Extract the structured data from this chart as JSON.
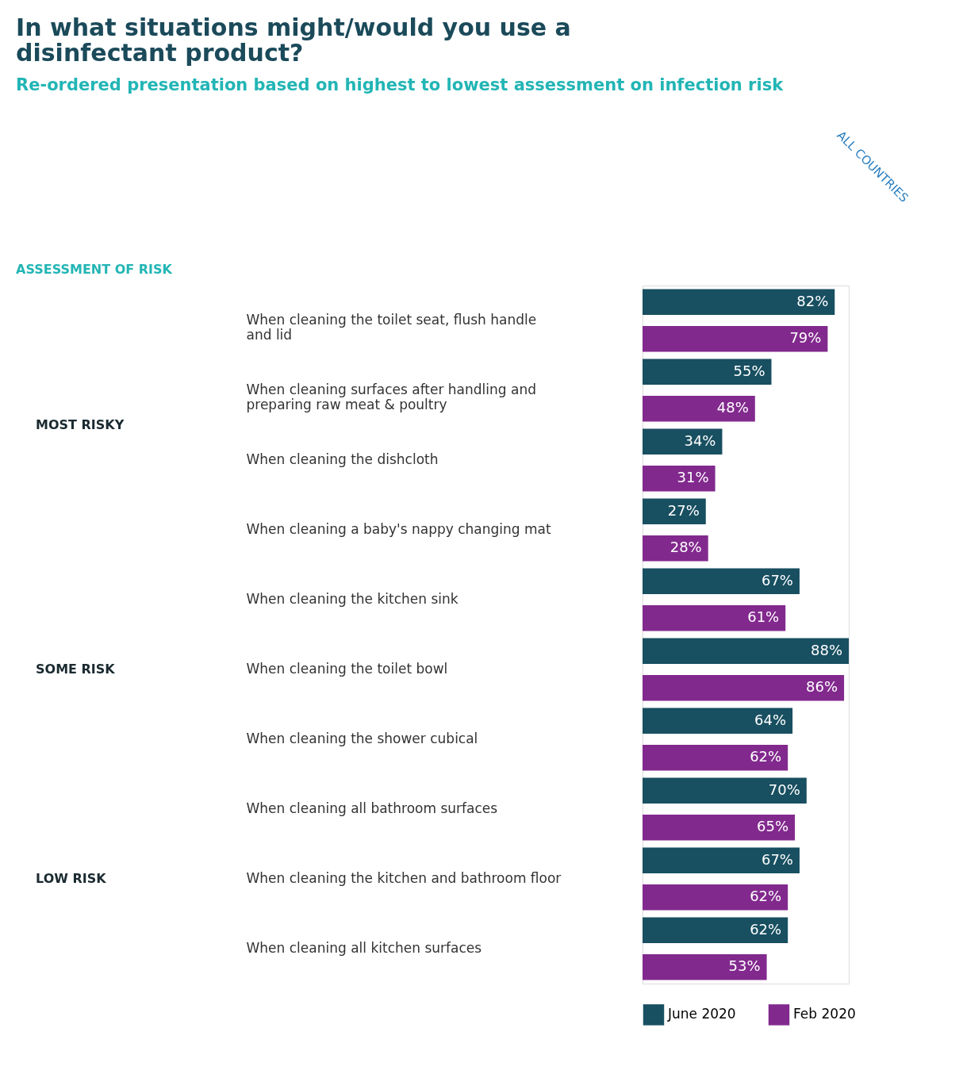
{
  "chart_data": {
    "type": "bar",
    "orientation": "horizontal",
    "title": "In what situations might/would you use a disinfectant product?",
    "subtitle": "Re-ordered presentation based on highest to lowest assessment on infection risk",
    "categories": [
      "When cleaning the toilet seat, flush handle and lid",
      "When cleaning surfaces after handling and preparing raw meat & poultry",
      "When cleaning the dishcloth",
      "When cleaning a baby's nappy changing mat",
      "When cleaning the kitchen sink",
      "When cleaning the toilet bowl",
      "When cleaning the shower cubical",
      "When cleaning all bathroom surfaces",
      "When cleaning the kitchen and bathroom floor",
      "When cleaning all kitchen surfaces"
    ],
    "series": [
      {
        "name": "June 2020",
        "color": "#184f61",
        "values": [
          82,
          55,
          34,
          27,
          67,
          88,
          64,
          70,
          67,
          62
        ],
        "value_labels": [
          "82%",
          "55%",
          "34%",
          "27%",
          "67%",
          "88%",
          "64%",
          "70%",
          "67%",
          "62%"
        ]
      },
      {
        "name": "Feb 2020",
        "color": "#82298e",
        "values": [
          79,
          48,
          31,
          28,
          61,
          86,
          62,
          65,
          62,
          53
        ],
        "value_labels": [
          "79%",
          "48%",
          "31%",
          "28%",
          "61%",
          "86%",
          "62%",
          "65%",
          "62%",
          "53%"
        ]
      }
    ],
    "tick_labels": "y",
    "legend": "bottom",
    "annotations": [
      "ASSESSMENT OF RISK",
      "MOST RISKY",
      "SOME RISK",
      "LOW RISK",
      "ALL COUNTRIES"
    ]
  }
}
